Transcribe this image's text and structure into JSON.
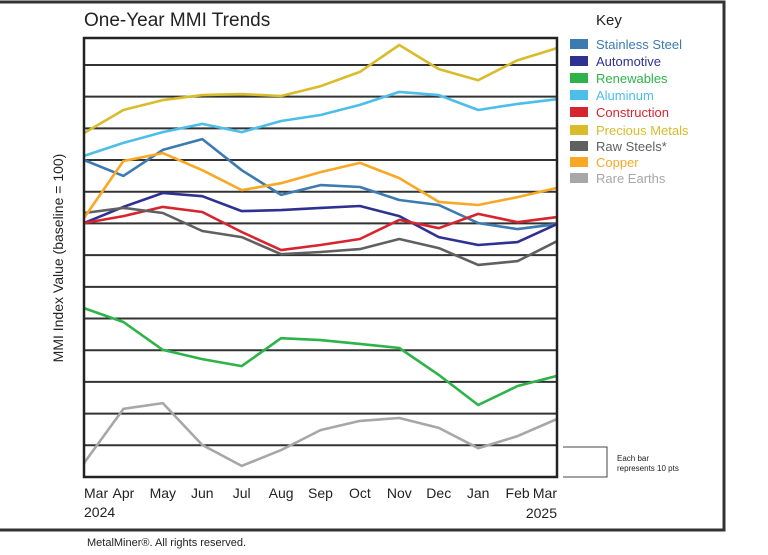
{
  "chart_data": {
    "type": "line",
    "title": "One-Year MMI Trends",
    "ylabel": "MMI Index Value (baseline = 100)",
    "xlabel": "",
    "categories": [
      "Mar",
      "Apr",
      "May",
      "Jun",
      "Jul",
      "Aug",
      "Sep",
      "Oct",
      "Nov",
      "Dec",
      "Jan",
      "Feb",
      "Mar"
    ],
    "year_labels": {
      "start": "2024",
      "end": "2025"
    },
    "ylim": [
      0,
      138.5
    ],
    "y_tick_labels_shown": false,
    "grid": true,
    "gridline_step": 10,
    "legend_title": "Key",
    "legend_position": "right",
    "scale_note": "Each bar represents 10 pts",
    "series": [
      {
        "name": "Stainless Steel",
        "color": "#3d7ab0",
        "values": [
          100,
          95,
          103.2,
          106.6,
          96.8,
          89,
          92.1,
          91.5,
          87.4,
          85.8,
          80.1,
          78.2,
          79.8
        ]
      },
      {
        "name": "Automotive",
        "color": "#2e3192",
        "values": [
          80.1,
          85.2,
          89.6,
          88.6,
          83.9,
          84.2,
          84.9,
          85.5,
          82.3,
          75.7,
          73.2,
          74.1,
          79.8
        ]
      },
      {
        "name": "Renewables",
        "color": "#2db34a",
        "values": [
          53.3,
          48.9,
          40.1,
          37.2,
          35,
          43.8,
          43.2,
          42,
          40.7,
          32.2,
          22.7,
          28.7,
          31.9
        ]
      },
      {
        "name": "Aluminum",
        "color": "#4dbde9",
        "values": [
          101.3,
          105.4,
          108.8,
          111.4,
          108.8,
          112.3,
          114.2,
          117.4,
          121.5,
          120.5,
          115.8,
          117.7,
          119.2
        ]
      },
      {
        "name": "Construction",
        "color": "#d6252f",
        "values": [
          80.1,
          82.3,
          85.2,
          83.6,
          77.3,
          71.6,
          73.2,
          75.1,
          81.1,
          78.5,
          83,
          80.4,
          82
        ]
      },
      {
        "name": "Precious Metals",
        "color": "#d9bc2b",
        "values": [
          108.5,
          115.8,
          118.9,
          120.5,
          120.8,
          120.2,
          123.3,
          127.8,
          136.3,
          128.7,
          125.2,
          131.5,
          135.3
        ]
      },
      {
        "name": "Raw Steels*",
        "color": "#5f6062",
        "values": [
          83.3,
          84.9,
          83.3,
          77.6,
          75.7,
          70.3,
          71,
          71.9,
          75.1,
          72.2,
          66.9,
          68.1,
          74.4
        ]
      },
      {
        "name": "Copper",
        "color": "#f9a825",
        "values": [
          81.7,
          99.7,
          102.2,
          96.8,
          90.5,
          92.7,
          96.2,
          99.1,
          94.3,
          86.8,
          85.8,
          88.3,
          91.2
        ]
      },
      {
        "name": "Rare Earths",
        "color": "#a7a7a7",
        "values": [
          4.4,
          21.5,
          23.3,
          10.1,
          3.5,
          8.5,
          14.8,
          17.7,
          18.6,
          15.5,
          9.1,
          12.9,
          18.3
        ]
      }
    ]
  },
  "footer": {
    "copyright": "MetalMiner®. All rights reserved."
  }
}
